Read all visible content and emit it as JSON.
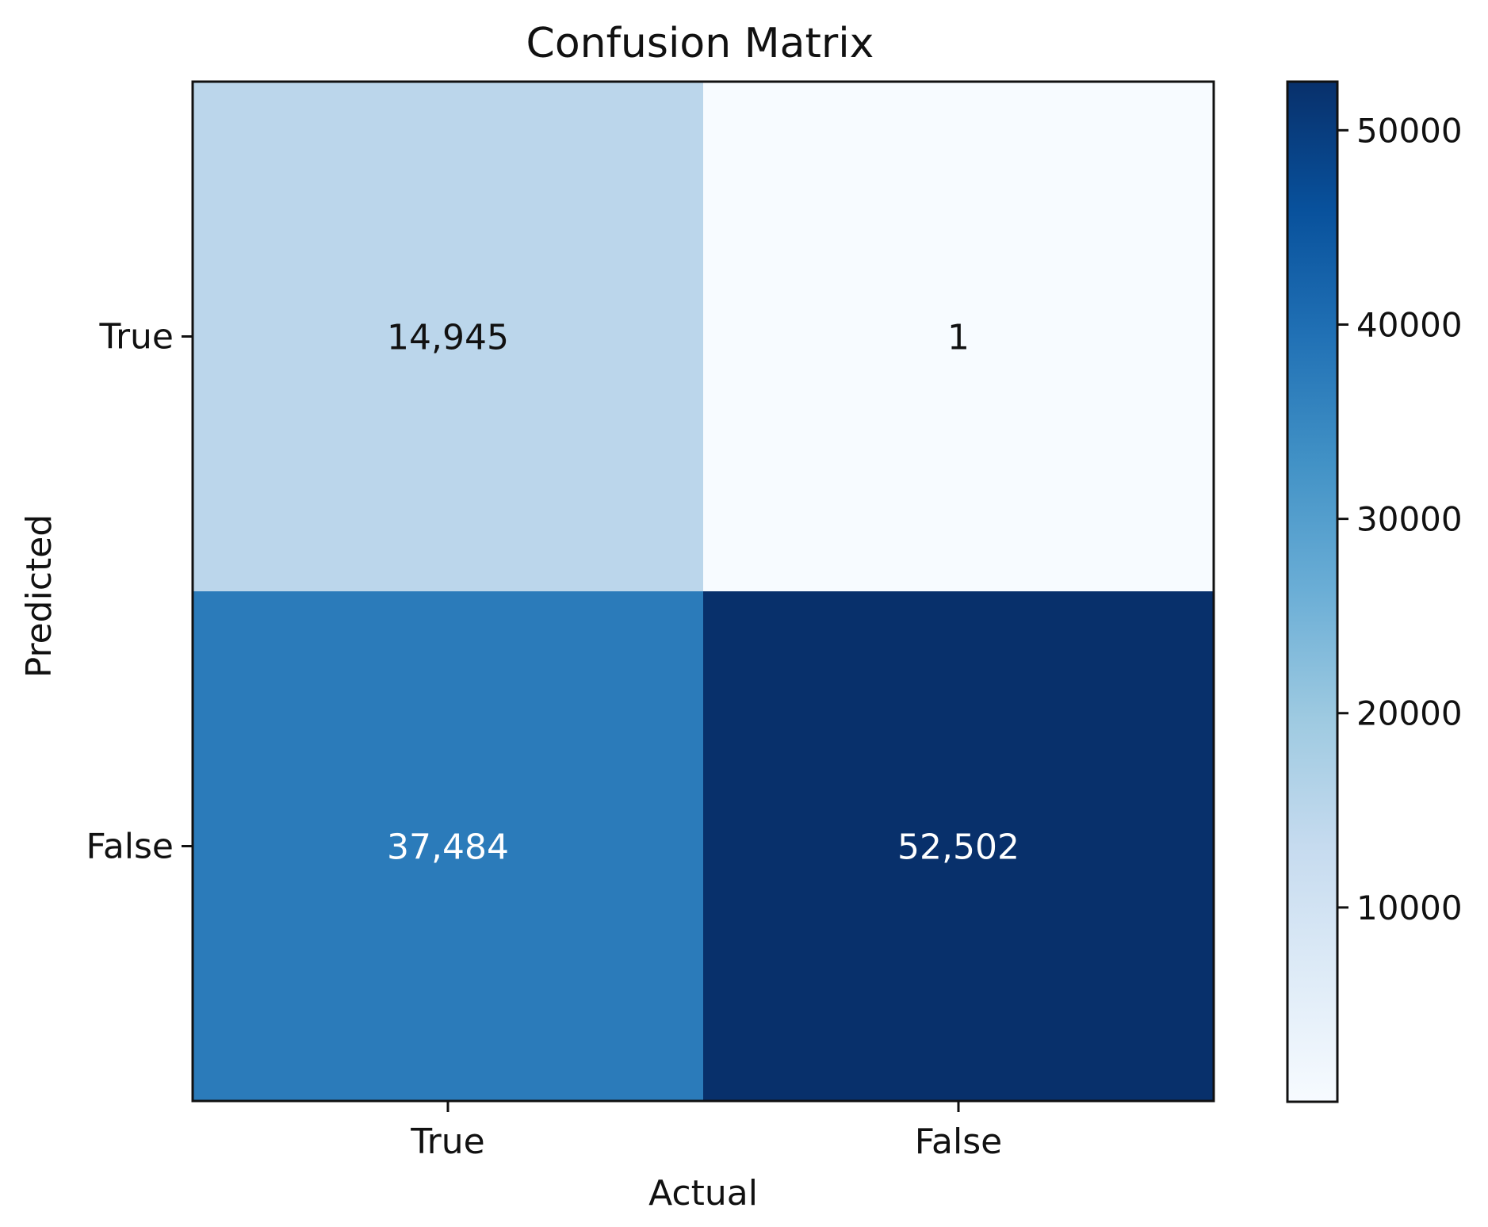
{
  "chart_data": {
    "type": "heatmap",
    "title": "Confusion Matrix",
    "xlabel": "Actual",
    "ylabel": "Predicted",
    "x_categories": [
      "True",
      "False"
    ],
    "y_categories": [
      "True",
      "False"
    ],
    "values": [
      [
        14945,
        1
      ],
      [
        37484,
        52502
      ]
    ],
    "cell_labels": [
      [
        "14,945",
        "1"
      ],
      [
        "37,484",
        "52,502"
      ]
    ],
    "colormap": "Blues",
    "colormap_stops": [
      "#f7fbff",
      "#deebf7",
      "#c6dbef",
      "#9ecae1",
      "#6baed6",
      "#4292c6",
      "#2171b5",
      "#08519c",
      "#08306b"
    ],
    "value_range": [
      1,
      52502
    ],
    "colorbar": {
      "ticks": [
        10000,
        20000,
        30000,
        40000,
        50000
      ],
      "tick_labels": [
        "10000",
        "20000",
        "30000",
        "40000",
        "50000"
      ],
      "range": [
        1,
        52502
      ]
    },
    "grid": false
  }
}
